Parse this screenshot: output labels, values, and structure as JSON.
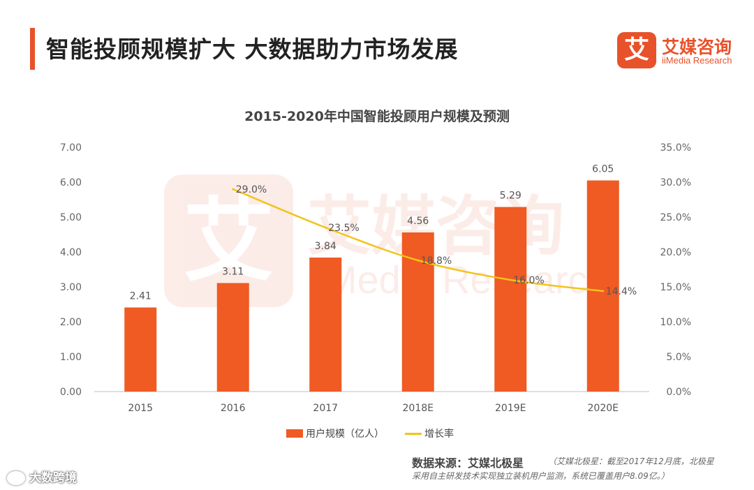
{
  "header": {
    "title": "智能投顾规模扩大  大数据助力市场发展",
    "logo_badge": "艾",
    "logo_cn": "艾媒咨询",
    "logo_en": "iiMedia Research"
  },
  "colors": {
    "accent": "#e8522a",
    "bar": "#f05a23",
    "line": "#f0c419"
  },
  "chart_data": {
    "type": "bar",
    "title": "2015-2020年中国智能投顾用户规模及预测",
    "categories": [
      "2015",
      "2016",
      "2017",
      "2018E",
      "2019E",
      "2020E"
    ],
    "series": [
      {
        "name": "用户规模（亿人）",
        "type": "bar",
        "axis": "left",
        "values": [
          2.41,
          3.11,
          3.84,
          4.56,
          5.29,
          6.05
        ],
        "labels": [
          "2.41",
          "3.11",
          "3.84",
          "4.56",
          "5.29",
          "6.05"
        ]
      },
      {
        "name": "增长率",
        "type": "line",
        "axis": "right",
        "values": [
          null,
          29.0,
          23.5,
          18.8,
          16.0,
          14.4
        ],
        "labels": [
          "",
          "29.0%",
          "23.5%",
          "18.8%",
          "16.0%",
          "14.4%"
        ]
      }
    ],
    "y_left": {
      "min": 0,
      "max": 7,
      "ticks": [
        "0.00",
        "1.00",
        "2.00",
        "3.00",
        "4.00",
        "5.00",
        "6.00",
        "7.00"
      ]
    },
    "y_right": {
      "min": 0,
      "max": 35,
      "ticks": [
        "0.0%",
        "5.0%",
        "10.0%",
        "15.0%",
        "20.0%",
        "25.0%",
        "30.0%",
        "35.0%"
      ]
    },
    "grid": false,
    "legend_position": "bottom"
  },
  "watermark": {
    "badge": "艾",
    "cn": "艾媒咨询",
    "en": "iiMedia Research"
  },
  "footer": {
    "source_label": "数据来源：艾媒北极星",
    "source_note_line1": "（艾媒北极星：截至2017年12月底，北极星",
    "source_note_line2": "采用自主研发技术实现独立装机用户监测，系统已覆盖用户8.09亿。）",
    "corner_mark": "大数跨境"
  }
}
